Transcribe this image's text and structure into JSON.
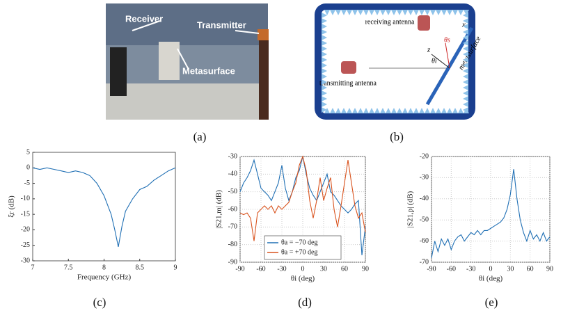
{
  "panels": {
    "a": {
      "caption": "(a)",
      "labels": [
        "Receiver",
        "Transmitter",
        "Metasurface"
      ]
    },
    "b": {
      "caption": "(b)",
      "labels": [
        "receiving antenna",
        "transmitting antenna",
        "metasurface",
        "x",
        "z",
        "θi",
        "θs"
      ]
    },
    "captions": [
      "(c)",
      "(d)",
      "(e)"
    ]
  },
  "chart_data": [
    {
      "type": "line",
      "xlabel": "Frequency (GHz)",
      "ylabel": "ξr (dB)",
      "color": "#1f6fb4",
      "grid": false,
      "xlim": [
        7,
        9
      ],
      "xticks": [
        7,
        7.5,
        8,
        8.5,
        9
      ],
      "ylim": [
        -30,
        5
      ],
      "yticks": [
        -30,
        -25,
        -20,
        -15,
        -10,
        -5,
        0,
        5
      ],
      "x": [
        7,
        7.1,
        7.2,
        7.3,
        7.4,
        7.5,
        7.6,
        7.7,
        7.8,
        7.9,
        8.0,
        8.1,
        8.15,
        8.2,
        8.25,
        8.3,
        8.4,
        8.5,
        8.6,
        8.7,
        8.8,
        8.9,
        9
      ],
      "values": [
        0,
        -0.5,
        0,
        -0.5,
        -1,
        -1.5,
        -1,
        -1.5,
        -2.5,
        -5,
        -9,
        -15,
        -20,
        -25.5,
        -19,
        -14,
        -10,
        -7,
        -6,
        -4,
        -2.5,
        -1,
        0
      ]
    },
    {
      "type": "line",
      "xlabel": "θi (deg)",
      "ylabel": "|S21,m| (dB)",
      "grid": true,
      "legend": "lower center",
      "xlim": [
        -90,
        90
      ],
      "xticks": [
        -90,
        -60,
        -30,
        0,
        30,
        60,
        90
      ],
      "ylim": [
        -90,
        -30
      ],
      "yticks": [
        -90,
        -80,
        -70,
        -60,
        -50,
        -40,
        -30
      ],
      "x": [
        -90,
        -85,
        -80,
        -75,
        -70,
        -65,
        -60,
        -55,
        -50,
        -45,
        -40,
        -35,
        -30,
        -25,
        -20,
        -15,
        -10,
        -5,
        0,
        5,
        10,
        15,
        20,
        25,
        30,
        35,
        40,
        45,
        50,
        55,
        60,
        65,
        70,
        75,
        80,
        85,
        90
      ],
      "series": [
        {
          "name": "θa = −70 deg",
          "color": "#1f6fb4",
          "values": [
            -50,
            -45,
            -42,
            -38,
            -32,
            -40,
            -48,
            -50,
            -52,
            -55,
            -50,
            -45,
            -35,
            -48,
            -55,
            -50,
            -42,
            -38,
            -30,
            -40,
            -48,
            -52,
            -55,
            -50,
            -45,
            -40,
            -50,
            -52,
            -55,
            -58,
            -60,
            -62,
            -60,
            -57,
            -55,
            -86,
            -70
          ]
        },
        {
          "name": "θa = +70 deg",
          "color": "#d9531e",
          "values": [
            -62,
            -63,
            -62,
            -65,
            -78,
            -62,
            -60,
            -58,
            -60,
            -58,
            -62,
            -58,
            -60,
            -58,
            -56,
            -50,
            -45,
            -35,
            -30,
            -38,
            -55,
            -65,
            -55,
            -42,
            -55,
            -48,
            -42,
            -60,
            -70,
            -58,
            -45,
            -32,
            -45,
            -58,
            -65,
            -62,
            -73
          ]
        }
      ]
    },
    {
      "type": "line",
      "xlabel": "θi (deg)",
      "ylabel": "|S21,p| (dB)",
      "color": "#1f6fb4",
      "grid": true,
      "xlim": [
        -90,
        90
      ],
      "xticks": [
        -90,
        -60,
        -30,
        0,
        30,
        60,
        90
      ],
      "ylim": [
        -70,
        -20
      ],
      "yticks": [
        -70,
        -60,
        -50,
        -40,
        -30,
        -20
      ],
      "x": [
        -90,
        -85,
        -80,
        -75,
        -70,
        -65,
        -60,
        -55,
        -50,
        -45,
        -40,
        -35,
        -30,
        -25,
        -20,
        -15,
        -10,
        -5,
        0,
        5,
        10,
        15,
        20,
        25,
        30,
        35,
        40,
        45,
        50,
        55,
        60,
        65,
        70,
        75,
        80,
        85,
        90
      ],
      "values": [
        -68,
        -60,
        -65,
        -59,
        -62,
        -59,
        -64,
        -60,
        -58,
        -57,
        -60,
        -58,
        -56,
        -57,
        -55,
        -57,
        -55,
        -55,
        -54,
        -53,
        -52,
        -51,
        -49,
        -45,
        -38,
        -26,
        -40,
        -50,
        -56,
        -60,
        -55,
        -59,
        -57,
        -60,
        -56,
        -60,
        -58
      ]
    }
  ]
}
